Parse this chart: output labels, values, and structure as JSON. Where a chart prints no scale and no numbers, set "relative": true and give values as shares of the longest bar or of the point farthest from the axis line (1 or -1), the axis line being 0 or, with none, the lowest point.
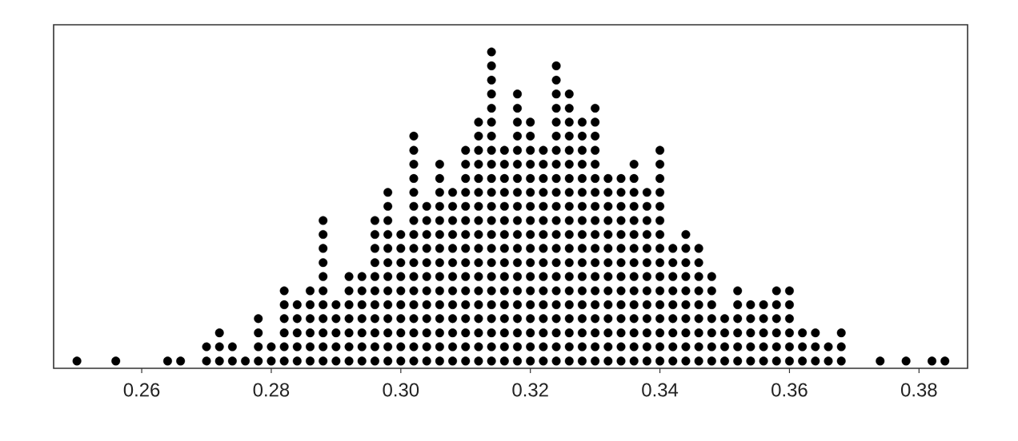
{
  "chart_data": {
    "type": "scatter",
    "marker": "circle",
    "color": "#000000",
    "tick_labels": "x",
    "relative": true,
    "xlim": [
      0.2464,
      0.3875
    ],
    "xticks": [
      0.26,
      0.28,
      {
        "value": 0.3,
        "label": "0.30"
      },
      0.32,
      0.34,
      0.36,
      0.38
    ],
    "x": [
      0.25,
      0.256,
      0.264,
      0.266,
      0.27,
      0.27,
      0.272,
      0.272,
      0.272,
      0.274,
      0.274,
      0.276,
      0.278,
      0.278,
      0.278,
      0.278,
      0.28,
      0.28,
      0.282,
      0.282,
      0.282,
      0.282,
      0.282,
      0.282,
      0.284,
      0.284,
      0.284,
      0.284,
      0.284,
      0.286,
      0.286,
      0.286,
      0.286,
      0.286,
      0.286,
      0.288,
      0.288,
      0.288,
      0.288,
      0.288,
      0.288,
      0.288,
      0.288,
      0.288,
      0.288,
      0.288,
      0.29,
      0.29,
      0.29,
      0.29,
      0.29,
      0.292,
      0.292,
      0.292,
      0.292,
      0.292,
      0.292,
      0.292,
      0.294,
      0.294,
      0.294,
      0.294,
      0.294,
      0.294,
      0.294,
      0.296,
      0.296,
      0.296,
      0.296,
      0.296,
      0.296,
      0.296,
      0.296,
      0.296,
      0.296,
      0.296,
      0.298,
      0.298,
      0.298,
      0.298,
      0.298,
      0.298,
      0.298,
      0.298,
      0.298,
      0.298,
      0.298,
      0.298,
      0.298,
      0.3,
      0.3,
      0.3,
      0.3,
      0.3,
      0.3,
      0.3,
      0.3,
      0.3,
      0.3,
      0.302,
      0.302,
      0.302,
      0.302,
      0.302,
      0.302,
      0.302,
      0.302,
      0.302,
      0.302,
      0.302,
      0.302,
      0.302,
      0.302,
      0.302,
      0.302,
      0.302,
      0.304,
      0.304,
      0.304,
      0.304,
      0.304,
      0.304,
      0.304,
      0.304,
      0.304,
      0.304,
      0.304,
      0.304,
      0.306,
      0.306,
      0.306,
      0.306,
      0.306,
      0.306,
      0.306,
      0.306,
      0.306,
      0.306,
      0.306,
      0.306,
      0.306,
      0.306,
      0.306,
      0.308,
      0.308,
      0.308,
      0.308,
      0.308,
      0.308,
      0.308,
      0.308,
      0.308,
      0.308,
      0.308,
      0.308,
      0.308,
      0.31,
      0.31,
      0.31,
      0.31,
      0.31,
      0.31,
      0.31,
      0.31,
      0.31,
      0.31,
      0.31,
      0.31,
      0.31,
      0.31,
      0.31,
      0.31,
      0.312,
      0.312,
      0.312,
      0.312,
      0.312,
      0.312,
      0.312,
      0.312,
      0.312,
      0.312,
      0.312,
      0.312,
      0.312,
      0.312,
      0.312,
      0.312,
      0.312,
      0.312,
      0.314,
      0.314,
      0.314,
      0.314,
      0.314,
      0.314,
      0.314,
      0.314,
      0.314,
      0.314,
      0.314,
      0.314,
      0.314,
      0.314,
      0.314,
      0.314,
      0.314,
      0.314,
      0.314,
      0.314,
      0.314,
      0.314,
      0.314,
      0.316,
      0.316,
      0.316,
      0.316,
      0.316,
      0.316,
      0.316,
      0.316,
      0.316,
      0.316,
      0.316,
      0.316,
      0.316,
      0.316,
      0.316,
      0.316,
      0.318,
      0.318,
      0.318,
      0.318,
      0.318,
      0.318,
      0.318,
      0.318,
      0.318,
      0.318,
      0.318,
      0.318,
      0.318,
      0.318,
      0.318,
      0.318,
      0.318,
      0.318,
      0.318,
      0.318,
      0.32,
      0.32,
      0.32,
      0.32,
      0.32,
      0.32,
      0.32,
      0.32,
      0.32,
      0.32,
      0.32,
      0.32,
      0.32,
      0.32,
      0.32,
      0.32,
      0.32,
      0.32,
      0.322,
      0.322,
      0.322,
      0.322,
      0.322,
      0.322,
      0.322,
      0.322,
      0.322,
      0.322,
      0.322,
      0.322,
      0.322,
      0.322,
      0.322,
      0.322,
      0.324,
      0.324,
      0.324,
      0.324,
      0.324,
      0.324,
      0.324,
      0.324,
      0.324,
      0.324,
      0.324,
      0.324,
      0.324,
      0.324,
      0.324,
      0.324,
      0.324,
      0.324,
      0.324,
      0.324,
      0.324,
      0.324,
      0.326,
      0.326,
      0.326,
      0.326,
      0.326,
      0.326,
      0.326,
      0.326,
      0.326,
      0.326,
      0.326,
      0.326,
      0.326,
      0.326,
      0.326,
      0.326,
      0.326,
      0.326,
      0.326,
      0.326,
      0.328,
      0.328,
      0.328,
      0.328,
      0.328,
      0.328,
      0.328,
      0.328,
      0.328,
      0.328,
      0.328,
      0.328,
      0.328,
      0.328,
      0.328,
      0.328,
      0.328,
      0.328,
      0.33,
      0.33,
      0.33,
      0.33,
      0.33,
      0.33,
      0.33,
      0.33,
      0.33,
      0.33,
      0.33,
      0.33,
      0.33,
      0.33,
      0.33,
      0.33,
      0.33,
      0.33,
      0.33,
      0.332,
      0.332,
      0.332,
      0.332,
      0.332,
      0.332,
      0.332,
      0.332,
      0.332,
      0.332,
      0.332,
      0.332,
      0.332,
      0.332,
      0.334,
      0.334,
      0.334,
      0.334,
      0.334,
      0.334,
      0.334,
      0.334,
      0.334,
      0.334,
      0.334,
      0.334,
      0.334,
      0.334,
      0.336,
      0.336,
      0.336,
      0.336,
      0.336,
      0.336,
      0.336,
      0.336,
      0.336,
      0.336,
      0.336,
      0.336,
      0.336,
      0.336,
      0.336,
      0.338,
      0.338,
      0.338,
      0.338,
      0.338,
      0.338,
      0.338,
      0.338,
      0.338,
      0.338,
      0.338,
      0.338,
      0.338,
      0.34,
      0.34,
      0.34,
      0.34,
      0.34,
      0.34,
      0.34,
      0.34,
      0.34,
      0.34,
      0.34,
      0.34,
      0.34,
      0.34,
      0.34,
      0.34,
      0.342,
      0.342,
      0.342,
      0.342,
      0.342,
      0.342,
      0.342,
      0.342,
      0.342,
      0.344,
      0.344,
      0.344,
      0.344,
      0.344,
      0.344,
      0.344,
      0.344,
      0.344,
      0.344,
      0.346,
      0.346,
      0.346,
      0.346,
      0.346,
      0.346,
      0.346,
      0.346,
      0.346,
      0.348,
      0.348,
      0.348,
      0.348,
      0.348,
      0.348,
      0.348,
      0.35,
      0.35,
      0.35,
      0.35,
      0.352,
      0.352,
      0.352,
      0.352,
      0.352,
      0.352,
      0.354,
      0.354,
      0.354,
      0.354,
      0.354,
      0.356,
      0.356,
      0.356,
      0.356,
      0.356,
      0.358,
      0.358,
      0.358,
      0.358,
      0.358,
      0.358,
      0.36,
      0.36,
      0.36,
      0.36,
      0.36,
      0.36,
      0.362,
      0.362,
      0.362,
      0.364,
      0.364,
      0.364,
      0.366,
      0.366,
      0.368,
      0.368,
      0.368,
      0.374,
      0.378,
      0.382,
      0.384
    ],
    "values": [
      0.023,
      0.023,
      0.023,
      0.023,
      0.023,
      0.068,
      0.023,
      0.068,
      0.112,
      0.023,
      0.068,
      0.023,
      0.023,
      0.068,
      0.112,
      0.157,
      0.023,
      0.068,
      0.023,
      0.068,
      0.112,
      0.157,
      0.201,
      0.245,
      0.023,
      0.068,
      0.112,
      0.157,
      0.201,
      0.023,
      0.068,
      0.112,
      0.157,
      0.201,
      0.245,
      0.023,
      0.068,
      0.112,
      0.157,
      0.201,
      0.245,
      0.29,
      0.334,
      0.379,
      0.423,
      0.467,
      0.023,
      0.068,
      0.112,
      0.157,
      0.201,
      0.023,
      0.068,
      0.112,
      0.157,
      0.201,
      0.245,
      0.29,
      0.023,
      0.068,
      0.112,
      0.157,
      0.201,
      0.245,
      0.29,
      0.023,
      0.068,
      0.112,
      0.157,
      0.201,
      0.245,
      0.29,
      0.334,
      0.379,
      0.423,
      0.467,
      0.023,
      0.068,
      0.112,
      0.157,
      0.201,
      0.245,
      0.29,
      0.334,
      0.379,
      0.423,
      0.467,
      0.512,
      0.556,
      0.023,
      0.068,
      0.112,
      0.157,
      0.201,
      0.245,
      0.29,
      0.334,
      0.379,
      0.423,
      0.023,
      0.068,
      0.112,
      0.157,
      0.201,
      0.245,
      0.29,
      0.334,
      0.379,
      0.423,
      0.467,
      0.512,
      0.556,
      0.6,
      0.645,
      0.689,
      0.734,
      0.023,
      0.068,
      0.112,
      0.157,
      0.201,
      0.245,
      0.29,
      0.334,
      0.379,
      0.423,
      0.467,
      0.512,
      0.023,
      0.068,
      0.112,
      0.157,
      0.201,
      0.245,
      0.29,
      0.334,
      0.379,
      0.423,
      0.467,
      0.512,
      0.556,
      0.6,
      0.645,
      0.023,
      0.068,
      0.112,
      0.157,
      0.201,
      0.245,
      0.29,
      0.334,
      0.379,
      0.423,
      0.467,
      0.512,
      0.556,
      0.023,
      0.068,
      0.112,
      0.157,
      0.201,
      0.245,
      0.29,
      0.334,
      0.379,
      0.423,
      0.467,
      0.512,
      0.556,
      0.6,
      0.645,
      0.689,
      0.023,
      0.068,
      0.112,
      0.157,
      0.201,
      0.245,
      0.29,
      0.334,
      0.379,
      0.423,
      0.467,
      0.512,
      0.556,
      0.6,
      0.645,
      0.689,
      0.734,
      0.778,
      0.023,
      0.068,
      0.112,
      0.157,
      0.201,
      0.245,
      0.29,
      0.334,
      0.379,
      0.423,
      0.467,
      0.512,
      0.556,
      0.6,
      0.645,
      0.689,
      0.734,
      0.778,
      0.822,
      0.867,
      0.911,
      0.956,
      1,
      0.023,
      0.068,
      0.112,
      0.157,
      0.201,
      0.245,
      0.29,
      0.334,
      0.379,
      0.423,
      0.467,
      0.512,
      0.556,
      0.6,
      0.645,
      0.689,
      0.023,
      0.068,
      0.112,
      0.157,
      0.201,
      0.245,
      0.29,
      0.334,
      0.379,
      0.423,
      0.467,
      0.512,
      0.556,
      0.6,
      0.645,
      0.689,
      0.734,
      0.778,
      0.822,
      0.867,
      0.023,
      0.068,
      0.112,
      0.157,
      0.201,
      0.245,
      0.29,
      0.334,
      0.379,
      0.423,
      0.467,
      0.512,
      0.556,
      0.6,
      0.645,
      0.689,
      0.734,
      0.778,
      0.023,
      0.068,
      0.112,
      0.157,
      0.201,
      0.245,
      0.29,
      0.334,
      0.379,
      0.423,
      0.467,
      0.512,
      0.556,
      0.6,
      0.645,
      0.689,
      0.023,
      0.068,
      0.112,
      0.157,
      0.201,
      0.245,
      0.29,
      0.334,
      0.379,
      0.423,
      0.467,
      0.512,
      0.556,
      0.6,
      0.645,
      0.689,
      0.734,
      0.778,
      0.822,
      0.867,
      0.911,
      0.956,
      0.023,
      0.068,
      0.112,
      0.157,
      0.201,
      0.245,
      0.29,
      0.334,
      0.379,
      0.423,
      0.467,
      0.512,
      0.556,
      0.6,
      0.645,
      0.689,
      0.734,
      0.778,
      0.822,
      0.867,
      0.023,
      0.068,
      0.112,
      0.157,
      0.201,
      0.245,
      0.29,
      0.334,
      0.379,
      0.423,
      0.467,
      0.512,
      0.556,
      0.6,
      0.645,
      0.689,
      0.734,
      0.778,
      0.023,
      0.068,
      0.112,
      0.157,
      0.201,
      0.245,
      0.29,
      0.334,
      0.379,
      0.423,
      0.467,
      0.512,
      0.556,
      0.6,
      0.645,
      0.689,
      0.734,
      0.778,
      0.822,
      0.023,
      0.068,
      0.112,
      0.157,
      0.201,
      0.245,
      0.29,
      0.334,
      0.379,
      0.423,
      0.467,
      0.512,
      0.556,
      0.6,
      0.023,
      0.068,
      0.112,
      0.157,
      0.201,
      0.245,
      0.29,
      0.334,
      0.379,
      0.423,
      0.467,
      0.512,
      0.556,
      0.6,
      0.023,
      0.068,
      0.112,
      0.157,
      0.201,
      0.245,
      0.29,
      0.334,
      0.379,
      0.423,
      0.467,
      0.512,
      0.556,
      0.6,
      0.645,
      0.023,
      0.068,
      0.112,
      0.157,
      0.201,
      0.245,
      0.29,
      0.334,
      0.379,
      0.423,
      0.467,
      0.512,
      0.556,
      0.023,
      0.068,
      0.112,
      0.157,
      0.201,
      0.245,
      0.29,
      0.334,
      0.379,
      0.423,
      0.467,
      0.512,
      0.556,
      0.6,
      0.645,
      0.689,
      0.023,
      0.068,
      0.112,
      0.157,
      0.201,
      0.245,
      0.29,
      0.334,
      0.379,
      0.023,
      0.068,
      0.112,
      0.157,
      0.201,
      0.245,
      0.29,
      0.334,
      0.379,
      0.423,
      0.023,
      0.068,
      0.112,
      0.157,
      0.201,
      0.245,
      0.29,
      0.334,
      0.379,
      0.023,
      0.068,
      0.112,
      0.157,
      0.201,
      0.245,
      0.29,
      0.023,
      0.068,
      0.112,
      0.157,
      0.023,
      0.068,
      0.112,
      0.157,
      0.201,
      0.245,
      0.023,
      0.068,
      0.112,
      0.157,
      0.201,
      0.023,
      0.068,
      0.112,
      0.157,
      0.201,
      0.023,
      0.068,
      0.112,
      0.157,
      0.201,
      0.245,
      0.023,
      0.068,
      0.112,
      0.157,
      0.201,
      0.245,
      0.023,
      0.068,
      0.112,
      0.023,
      0.068,
      0.112,
      0.023,
      0.068,
      0.023,
      0.068,
      0.112,
      0.023,
      0.023,
      0.023,
      0.023
    ]
  }
}
